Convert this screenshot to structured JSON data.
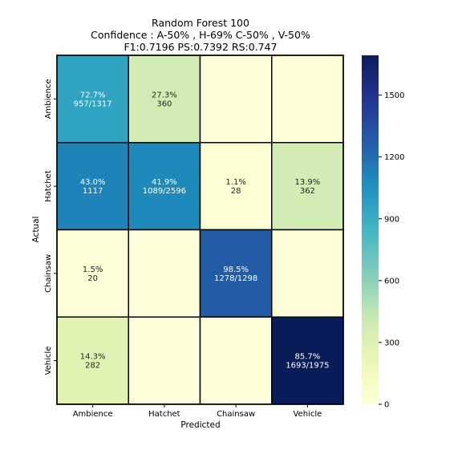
{
  "chart_data": {
    "type": "heatmap",
    "title_lines": [
      "Random Forest 100",
      "Confidence : A-50% , H-69% C-50% , V-50%",
      "F1:0.7196   PS:0.7392   RS:0.747"
    ],
    "xlabel": "Predicted",
    "ylabel": "Actual",
    "x_categories": [
      "Ambience",
      "Hatchet",
      "Chainsaw",
      "Vehicle"
    ],
    "y_categories": [
      "Ambience",
      "Hatchet",
      "Chainsaw",
      "Vehicle"
    ],
    "values": [
      [
        957,
        360,
        0,
        0
      ],
      [
        1117,
        1089,
        28,
        362
      ],
      [
        20,
        0,
        1278,
        0
      ],
      [
        282,
        0,
        0,
        1693
      ]
    ],
    "annotations": [
      [
        [
          "72.7%",
          "957/1317"
        ],
        [
          "27.3%",
          "360"
        ],
        [],
        []
      ],
      [
        [
          "43.0%",
          "1117"
        ],
        [
          "41.9%",
          "1089/2596"
        ],
        [
          "1.1%",
          "28"
        ],
        [
          "13.9%",
          "362"
        ]
      ],
      [
        [
          "1.5%",
          "20"
        ],
        [],
        [
          "98.5%",
          "1278/1298"
        ],
        []
      ],
      [
        [
          "14.3%",
          "282"
        ],
        [],
        [],
        [
          "85.7%",
          "1693/1975"
        ]
      ]
    ],
    "colorbar": {
      "colormap": "YlGnBu",
      "vmin": 0,
      "vmax": 1693,
      "ticks": [
        0,
        300,
        600,
        900,
        1200,
        1500
      ],
      "tick_labels": [
        "0",
        "300",
        "600",
        "900",
        "1200",
        "1500"
      ]
    }
  }
}
